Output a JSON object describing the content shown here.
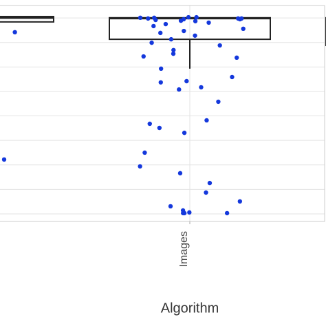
{
  "chart_data": {
    "type": "box",
    "xlabel": "Algorithm",
    "categories": [
      null,
      "Images",
      null
    ],
    "boxes": [
      {
        "whislo": 7.84,
        "q1": 7.84,
        "median": 8.0,
        "q3": 8.06,
        "whishi": 8.06
      },
      {
        "whislo": 5.93,
        "q1": 7.13,
        "median": 7.98,
        "q3": 8.01,
        "whishi": 8.01
      },
      {
        "whislo": 6.88,
        "q1": 6.88,
        "median": 7.9,
        "q3": 8.01,
        "whishi": 8.01
      }
    ],
    "points": [
      [
        8.03,
        8.01,
        7.98,
        7.98,
        7.95,
        7.92,
        7.89,
        7.42,
        6.99,
        6.63,
        6.12,
        2.22,
        1.49,
        0.39,
        0.34,
        0.08,
        0.03,
        0.03
      ],
      [
        8.03,
        8.03,
        8.01,
        8.01,
        7.98,
        7.98,
        7.98,
        7.95,
        7.95,
        7.92,
        7.89,
        7.87,
        7.81,
        7.75,
        7.67,
        7.56,
        7.47,
        7.39,
        7.28,
        7.13,
        6.99,
        6.88,
        6.69,
        6.54,
        6.43,
        6.38,
        5.93,
        5.59,
        5.42,
        5.37,
        5.17,
        5.08,
        4.58,
        3.82,
        3.68,
        3.51,
        3.31,
        2.5,
        1.94,
        1.66,
        1.26,
        0.87,
        0.51,
        0.31,
        0.14,
        0.06,
        0.03,
        0.03,
        0.03
      ],
      []
    ],
    "ylim": [
      -0.31,
      8.51
    ],
    "yticks": [
      0,
      1,
      2,
      3,
      4,
      5,
      6,
      7,
      8
    ],
    "grid": true,
    "point_color": "#1438dc",
    "box_color": "#222222"
  }
}
